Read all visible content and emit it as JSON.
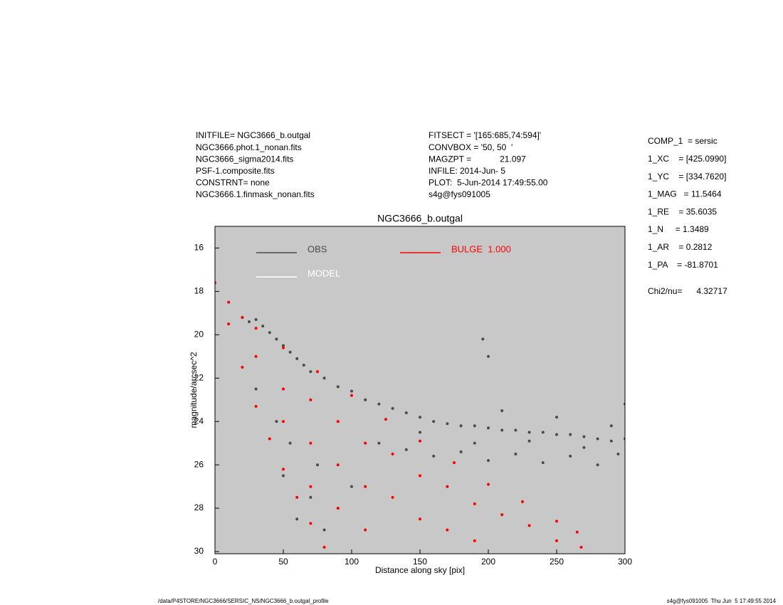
{
  "header": {
    "left": [
      "INITFILE= NGC3666_b.outgal",
      "NGC3666.phot.1_nonan.fits",
      "NGC3666_sigma2014.fits",
      "PSF-1.composite.fits",
      "CONSTRNT= none",
      "NGC3666.1.finmask_nonan.fits"
    ],
    "middle": [
      "FITSECT = '[165:685,74:594]'",
      "CONVBOX = '50, 50  '",
      "MAGZPT =            21.097",
      "INFILE: 2014-Jun- 5",
      "PLOT:  5-Jun-2014 17:49:55.00",
      "s4g@fys091005"
    ]
  },
  "fit_parameters": [
    "COMP_1  = sersic",
    "1_XC    = [425.0990]",
    "1_YC    = [334.7620]",
    "1_MAG   = 11.5464",
    "1_RE    = 35.6035",
    "1_N     = 1.3489",
    "1_AR    = 0.2812",
    "1_PA    = -81.8701"
  ],
  "chi2": "Chi2/nu=      4.32717",
  "footer": {
    "left": "/data/P4STORE/NGC3666/SERSIC_NS/NGC3666_b.outgal_profile",
    "right": "s4g@fys091005  Thu Jun  5 17:49:55 2014"
  },
  "chart_data": {
    "type": "scatter",
    "title": "NGC3666_b.outgal",
    "x_label": "Distance along sky [pix]",
    "y_label": "magnitude/arcsec^2",
    "xlim": [
      0,
      300
    ],
    "xticks": [
      0,
      50,
      100,
      150,
      200,
      250,
      300
    ],
    "ylim": [
      30.1,
      15
    ],
    "yticks": [
      16,
      18,
      20,
      22,
      24,
      26,
      28,
      30
    ],
    "background": "#c8c8c8",
    "series": [
      {
        "name": "OBS",
        "color": "#4a4a4a",
        "x": [
          20,
          25,
          30,
          35,
          40,
          45,
          50,
          55,
          60,
          65,
          70,
          80,
          90,
          100,
          110,
          120,
          130,
          140,
          150,
          160,
          170,
          180,
          190,
          200,
          210,
          220,
          230,
          240,
          250,
          260,
          270,
          280,
          290,
          300,
          120,
          140,
          160,
          180,
          200,
          220,
          240,
          260,
          280,
          295,
          150,
          190,
          230,
          270,
          290,
          250,
          210,
          300,
          45,
          50,
          60,
          70,
          80,
          30,
          55,
          75,
          90,
          100,
          196,
          200
        ],
        "values": [
          19.2,
          19.4,
          19.3,
          19.6,
          19.9,
          20.2,
          20.5,
          20.8,
          21.1,
          21.4,
          21.7,
          22.0,
          22.4,
          22.6,
          23.0,
          23.2,
          23.4,
          23.6,
          23.8,
          24.0,
          24.1,
          24.2,
          24.2,
          24.3,
          24.4,
          24.4,
          24.5,
          24.5,
          24.6,
          24.6,
          24.7,
          24.8,
          24.9,
          24.8,
          25.0,
          25.3,
          25.6,
          25.4,
          25.8,
          25.5,
          25.9,
          25.6,
          26.0,
          25.5,
          24.5,
          25.0,
          24.9,
          25.2,
          24.2,
          23.8,
          23.5,
          23.2,
          24.0,
          26.5,
          28.5,
          27.5,
          29.0,
          22.5,
          25.0,
          26.0,
          28.0,
          27.0,
          20.2,
          21.0
        ]
      },
      {
        "name": "MODEL",
        "color": "#ffffff",
        "x": [],
        "values": []
      },
      {
        "name": "BULGE  1.000",
        "color": "#ff0000",
        "x": [
          0,
          10,
          20,
          30,
          50,
          75,
          100,
          125,
          150,
          175,
          200,
          225,
          250,
          265,
          10,
          20,
          30,
          40,
          50,
          60,
          70,
          80,
          30,
          50,
          50,
          70,
          70,
          70,
          90,
          90,
          90,
          110,
          110,
          110,
          130,
          130,
          150,
          150,
          170,
          170,
          190,
          190,
          210,
          230,
          250,
          268
        ],
        "values": [
          17.6,
          18.5,
          19.2,
          19.7,
          20.6,
          21.7,
          22.8,
          23.9,
          24.9,
          25.9,
          26.9,
          27.7,
          28.6,
          29.1,
          19.5,
          21.5,
          23.3,
          24.8,
          26.2,
          27.5,
          28.7,
          29.8,
          21.0,
          22.5,
          24.0,
          23.0,
          25.0,
          27.0,
          24.0,
          26.0,
          28.0,
          25.0,
          27.0,
          29.0,
          25.5,
          27.5,
          26.5,
          28.5,
          27.0,
          29.0,
          27.8,
          29.5,
          28.3,
          28.8,
          29.5,
          29.8
        ]
      }
    ]
  }
}
